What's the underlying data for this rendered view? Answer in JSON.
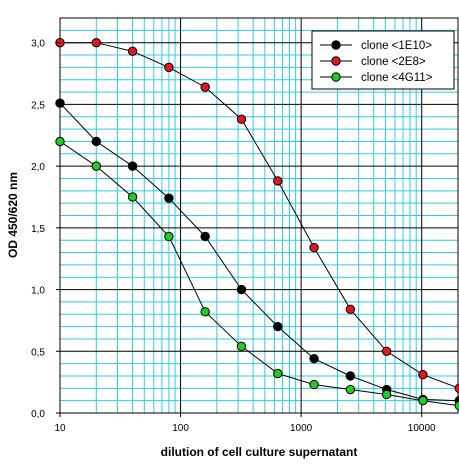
{
  "chart_data": {
    "type": "line",
    "xscale": "log",
    "xlabel": "dilution of cell culture supernatant",
    "ylabel": "OD 450/620 nm",
    "xlim": [
      10,
      20000
    ],
    "ylim": [
      0,
      3.2
    ],
    "x_ticks": [
      {
        "value": 10,
        "label": "10"
      },
      {
        "value": 100,
        "label": "100"
      },
      {
        "value": 1000,
        "label": "1000"
      },
      {
        "value": 10000,
        "label": "10000"
      }
    ],
    "y_ticks": [
      {
        "value": 0,
        "label": "0,0"
      },
      {
        "value": 0.5,
        "label": "0,5"
      },
      {
        "value": 1.0,
        "label": "1,0"
      },
      {
        "value": 1.5,
        "label": "1,5"
      },
      {
        "value": 2.0,
        "label": "2,0"
      },
      {
        "value": 2.5,
        "label": "2,5"
      },
      {
        "value": 3.0,
        "label": "3,0"
      }
    ],
    "grid": true,
    "grid_color": "#33ccdd",
    "legend_position": "top-right",
    "x": [
      10,
      20,
      40,
      80,
      160,
      320,
      640,
      1280,
      2560,
      5120,
      10240,
      20480
    ],
    "series": [
      {
        "name": "clone <1E10>",
        "color": "#000000",
        "values": [
          2.51,
          2.2,
          2.0,
          1.74,
          1.43,
          1.0,
          0.7,
          0.44,
          0.3,
          0.19,
          0.11,
          0.1
        ]
      },
      {
        "name": "clone <2E8>",
        "color": "#e0191e",
        "values": [
          3.0,
          3.0,
          2.93,
          2.8,
          2.64,
          2.38,
          1.88,
          1.34,
          0.84,
          0.5,
          0.31,
          0.2
        ]
      },
      {
        "name": "clone <4G11>",
        "color": "#22cc22",
        "values": [
          2.2,
          2.0,
          1.75,
          1.43,
          0.82,
          0.54,
          0.32,
          0.23,
          0.19,
          0.15,
          0.1,
          0.06
        ]
      }
    ]
  }
}
